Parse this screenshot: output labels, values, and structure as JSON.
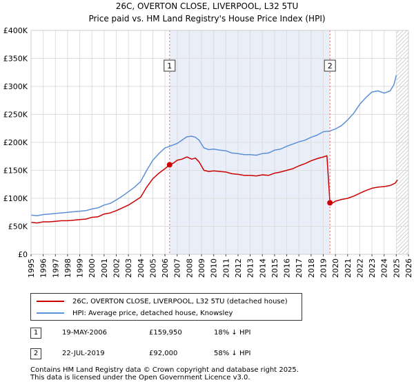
{
  "chart_data": {
    "type": "line",
    "title": "26C, OVERTON CLOSE, LIVERPOOL, L32 5TU",
    "subtitle": "Price paid vs. HM Land Registry's House Price Index (HPI)",
    "xlabel": "",
    "ylabel": "",
    "xlim": [
      1995,
      2026
    ],
    "ylim": [
      0,
      400000
    ],
    "y_ticks": [
      0,
      50000,
      100000,
      150000,
      200000,
      250000,
      300000,
      350000,
      400000
    ],
    "y_tick_labels": [
      "£0",
      "£50K",
      "£100K",
      "£150K",
      "£200K",
      "£250K",
      "£300K",
      "£350K",
      "£400K"
    ],
    "x_ticks": [
      "1995",
      "1996",
      "1997",
      "1998",
      "1999",
      "2000",
      "2001",
      "2002",
      "2003",
      "2004",
      "2005",
      "2006",
      "2007",
      "2008",
      "2009",
      "2010",
      "2011",
      "2012",
      "2013",
      "2014",
      "2015",
      "2016",
      "2017",
      "2018",
      "2019",
      "2020",
      "2021",
      "2022",
      "2023",
      "2024",
      "2025",
      "2026"
    ],
    "shaded_span": [
      2006.38,
      2019.55
    ],
    "hatched_from": 2025.0,
    "grid": true,
    "series": [
      {
        "name": "26C, OVERTON CLOSE, LIVERPOOL, L32 5TU (detached house)",
        "color": "#cc0000",
        "x": [
          1995.0,
          1995.5,
          1996.0,
          1996.5,
          1997.0,
          1997.5,
          1998.0,
          1998.5,
          1999.0,
          1999.5,
          2000.0,
          2000.5,
          2001.0,
          2001.5,
          2002.0,
          2002.5,
          2003.0,
          2003.5,
          2004.0,
          2004.5,
          2005.0,
          2005.5,
          2006.0,
          2006.38,
          2006.7,
          2007.0,
          2007.4,
          2007.8,
          2008.2,
          2008.5,
          2008.8,
          2009.2,
          2009.6,
          2010.0,
          2010.5,
          2011.0,
          2011.5,
          2012.0,
          2012.5,
          2013.0,
          2013.5,
          2014.0,
          2014.5,
          2015.0,
          2015.5,
          2016.0,
          2016.5,
          2017.0,
          2017.5,
          2018.0,
          2018.5,
          2019.0,
          2019.3,
          2019.55,
          2019.8,
          2020.0,
          2020.5,
          2021.0,
          2021.5,
          2022.0,
          2022.5,
          2023.0,
          2023.5,
          2024.0,
          2024.5,
          2024.9,
          2025.1
        ],
        "values": [
          57000,
          56000,
          58000,
          58000,
          59000,
          60000,
          60000,
          61000,
          62000,
          63000,
          66000,
          67000,
          72000,
          74000,
          78000,
          83000,
          88000,
          95000,
          102000,
          120000,
          135000,
          145000,
          153000,
          159950,
          163000,
          168000,
          170000,
          174000,
          170000,
          172000,
          165000,
          150000,
          148000,
          149000,
          148000,
          147000,
          144000,
          143000,
          141000,
          141000,
          140000,
          142000,
          141000,
          145000,
          147000,
          150000,
          153000,
          158000,
          162000,
          167000,
          171000,
          174000,
          176000,
          92000,
          92000,
          95000,
          98000,
          100000,
          104000,
          109000,
          114000,
          118000,
          120000,
          121000,
          123000,
          127000,
          133000
        ]
      },
      {
        "name": "HPI: Average price, detached house, Knowsley",
        "color": "#5b8fd6",
        "x": [
          1995.0,
          1995.5,
          1996.0,
          1996.5,
          1997.0,
          1997.5,
          1998.0,
          1998.5,
          1999.0,
          1999.5,
          2000.0,
          2000.5,
          2001.0,
          2001.5,
          2002.0,
          2002.5,
          2003.0,
          2003.5,
          2004.0,
          2004.5,
          2005.0,
          2005.5,
          2006.0,
          2006.5,
          2007.0,
          2007.4,
          2007.8,
          2008.2,
          2008.5,
          2008.8,
          2009.2,
          2009.6,
          2010.0,
          2010.5,
          2011.0,
          2011.5,
          2012.0,
          2012.5,
          2013.0,
          2013.5,
          2014.0,
          2014.5,
          2015.0,
          2015.5,
          2016.0,
          2016.5,
          2017.0,
          2017.5,
          2018.0,
          2018.5,
          2019.0,
          2019.5,
          2020.0,
          2020.5,
          2021.0,
          2021.5,
          2022.0,
          2022.5,
          2023.0,
          2023.5,
          2024.0,
          2024.5,
          2024.8,
          2025.0
        ],
        "values": [
          70000,
          69000,
          71000,
          72000,
          73000,
          74000,
          75000,
          76000,
          77000,
          78000,
          81000,
          83000,
          88000,
          91000,
          97000,
          104000,
          112000,
          120000,
          130000,
          150000,
          168000,
          180000,
          190000,
          194000,
          198000,
          204000,
          210000,
          211000,
          209000,
          204000,
          190000,
          187000,
          188000,
          186000,
          185000,
          181000,
          180000,
          178000,
          178000,
          177000,
          180000,
          181000,
          186000,
          188000,
          193000,
          197000,
          201000,
          204000,
          209000,
          213000,
          219000,
          220000,
          224000,
          230000,
          240000,
          252000,
          268000,
          280000,
          290000,
          292000,
          288000,
          292000,
          303000,
          320000
        ]
      }
    ],
    "markers": [
      {
        "label": "1",
        "x": 2006.38,
        "y": 159950
      },
      {
        "label": "2",
        "x": 2019.55,
        "y": 92000
      }
    ]
  },
  "legend": {
    "entries": [
      {
        "label": "26C, OVERTON CLOSE, LIVERPOOL, L32 5TU (detached house)",
        "color": "#cc0000"
      },
      {
        "label": "HPI: Average price, detached house, Knowsley",
        "color": "#5b8fd6"
      }
    ]
  },
  "sales": [
    {
      "num": "1",
      "date": "19-MAY-2006",
      "price": "£159,950",
      "hpi": "18% ↓ HPI"
    },
    {
      "num": "2",
      "date": "22-JUL-2019",
      "price": "£92,000",
      "hpi": "58% ↓ HPI"
    }
  ],
  "footer": {
    "line1": "Contains HM Land Registry data © Crown copyright and database right 2025.",
    "line2": "This data is licensed under the Open Government Licence v3.0."
  }
}
